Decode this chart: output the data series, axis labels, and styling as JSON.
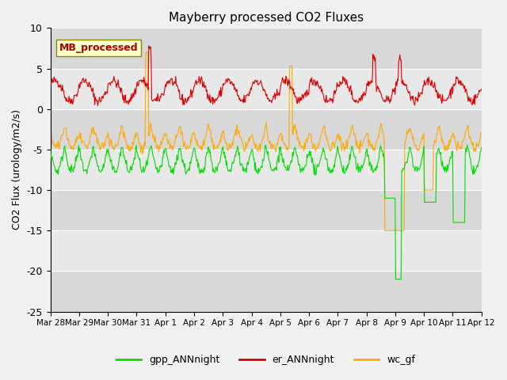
{
  "title": "Mayberry processed CO2 Fluxes",
  "ylabel": "CO2 Flux (urology/m2/s)",
  "xlabel": "",
  "ylim": [
    -25,
    10
  ],
  "yticks": [
    -25,
    -20,
    -15,
    -10,
    -5,
    0,
    5,
    10
  ],
  "line_colors": {
    "gpp_ANNnight": "#00dd00",
    "er_ANNnight": "#dd0000",
    "wc_gf": "#ffaa00"
  },
  "legend_labels": [
    "gpp_ANNnight",
    "er_ANNnight",
    "wc_gf"
  ],
  "mb_box_color": "#ffffcc",
  "mb_text_color": "#aa0000",
  "xtick_labels": [
    "Mar 28",
    "Mar 29",
    "Mar 30",
    "Mar 31",
    "Apr 1",
    "Apr 2",
    "Apr 3",
    "Apr 4",
    "Apr 5",
    "Apr 6",
    "Apr 7",
    "Apr 8",
    "Apr 9",
    "Apr 10",
    "Apr 11",
    "Apr 12"
  ],
  "n_days": 15
}
